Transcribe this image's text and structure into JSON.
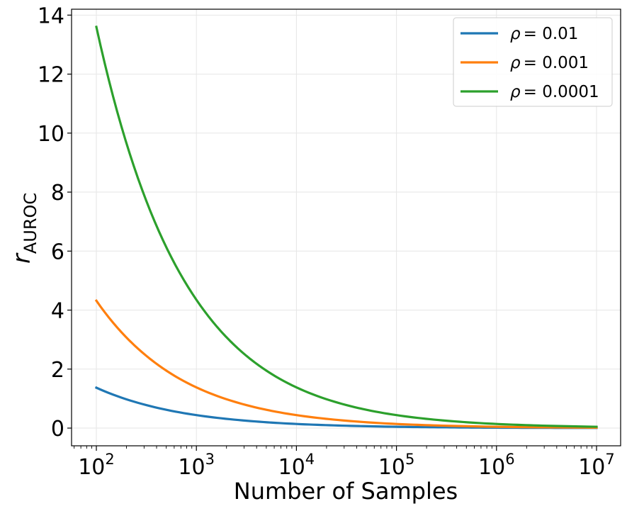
{
  "chart_data": {
    "type": "line",
    "title": "",
    "xscale": "log",
    "xlabel": "Number of Samples",
    "ylabel_main": "r",
    "ylabel_sub": "AUROC",
    "xlim": [
      100,
      10000000
    ],
    "ylim": [
      -0.6,
      14.2
    ],
    "grid": true,
    "legend_position": "top-right",
    "x_ticks": [
      {
        "value": 100,
        "base": "10",
        "exp": "2"
      },
      {
        "value": 1000,
        "base": "10",
        "exp": "3"
      },
      {
        "value": 10000,
        "base": "10",
        "exp": "4"
      },
      {
        "value": 100000,
        "base": "10",
        "exp": "5"
      },
      {
        "value": 1000000,
        "base": "10",
        "exp": "6"
      },
      {
        "value": 10000000,
        "base": "10",
        "exp": "7"
      }
    ],
    "y_ticks": [
      {
        "value": 0,
        "label": "0"
      },
      {
        "value": 2,
        "label": "2"
      },
      {
        "value": 4,
        "label": "4"
      },
      {
        "value": 6,
        "label": "6"
      },
      {
        "value": 8,
        "label": "8"
      },
      {
        "value": 10,
        "label": "10"
      },
      {
        "value": 12,
        "label": "12"
      },
      {
        "value": 14,
        "label": "14"
      }
    ],
    "x": [
      100,
      316,
      1000,
      3162,
      10000,
      31623,
      100000,
      316228,
      1000000,
      3162278,
      10000000
    ],
    "series": [
      {
        "name": "ρ = 0.01",
        "legend_symbol": "ρ",
        "legend_value": "= 0.01",
        "color": "#1f77b4",
        "values": [
          1.37,
          0.78,
          0.44,
          0.25,
          0.14,
          0.08,
          0.045,
          0.026,
          0.014,
          0.008,
          0.005
        ]
      },
      {
        "name": "ρ = 0.001",
        "legend_symbol": "ρ",
        "legend_value": "= 0.001",
        "color": "#ff7f0e",
        "values": [
          4.32,
          2.45,
          1.38,
          0.78,
          0.44,
          0.25,
          0.14,
          0.08,
          0.045,
          0.026,
          0.015
        ]
      },
      {
        "name": "ρ = 0.0001",
        "legend_symbol": "ρ",
        "legend_value": "= 0.0001",
        "color": "#2ca02c",
        "values": [
          13.6,
          7.7,
          4.35,
          2.45,
          1.38,
          0.78,
          0.44,
          0.25,
          0.14,
          0.08,
          0.045
        ]
      }
    ]
  }
}
